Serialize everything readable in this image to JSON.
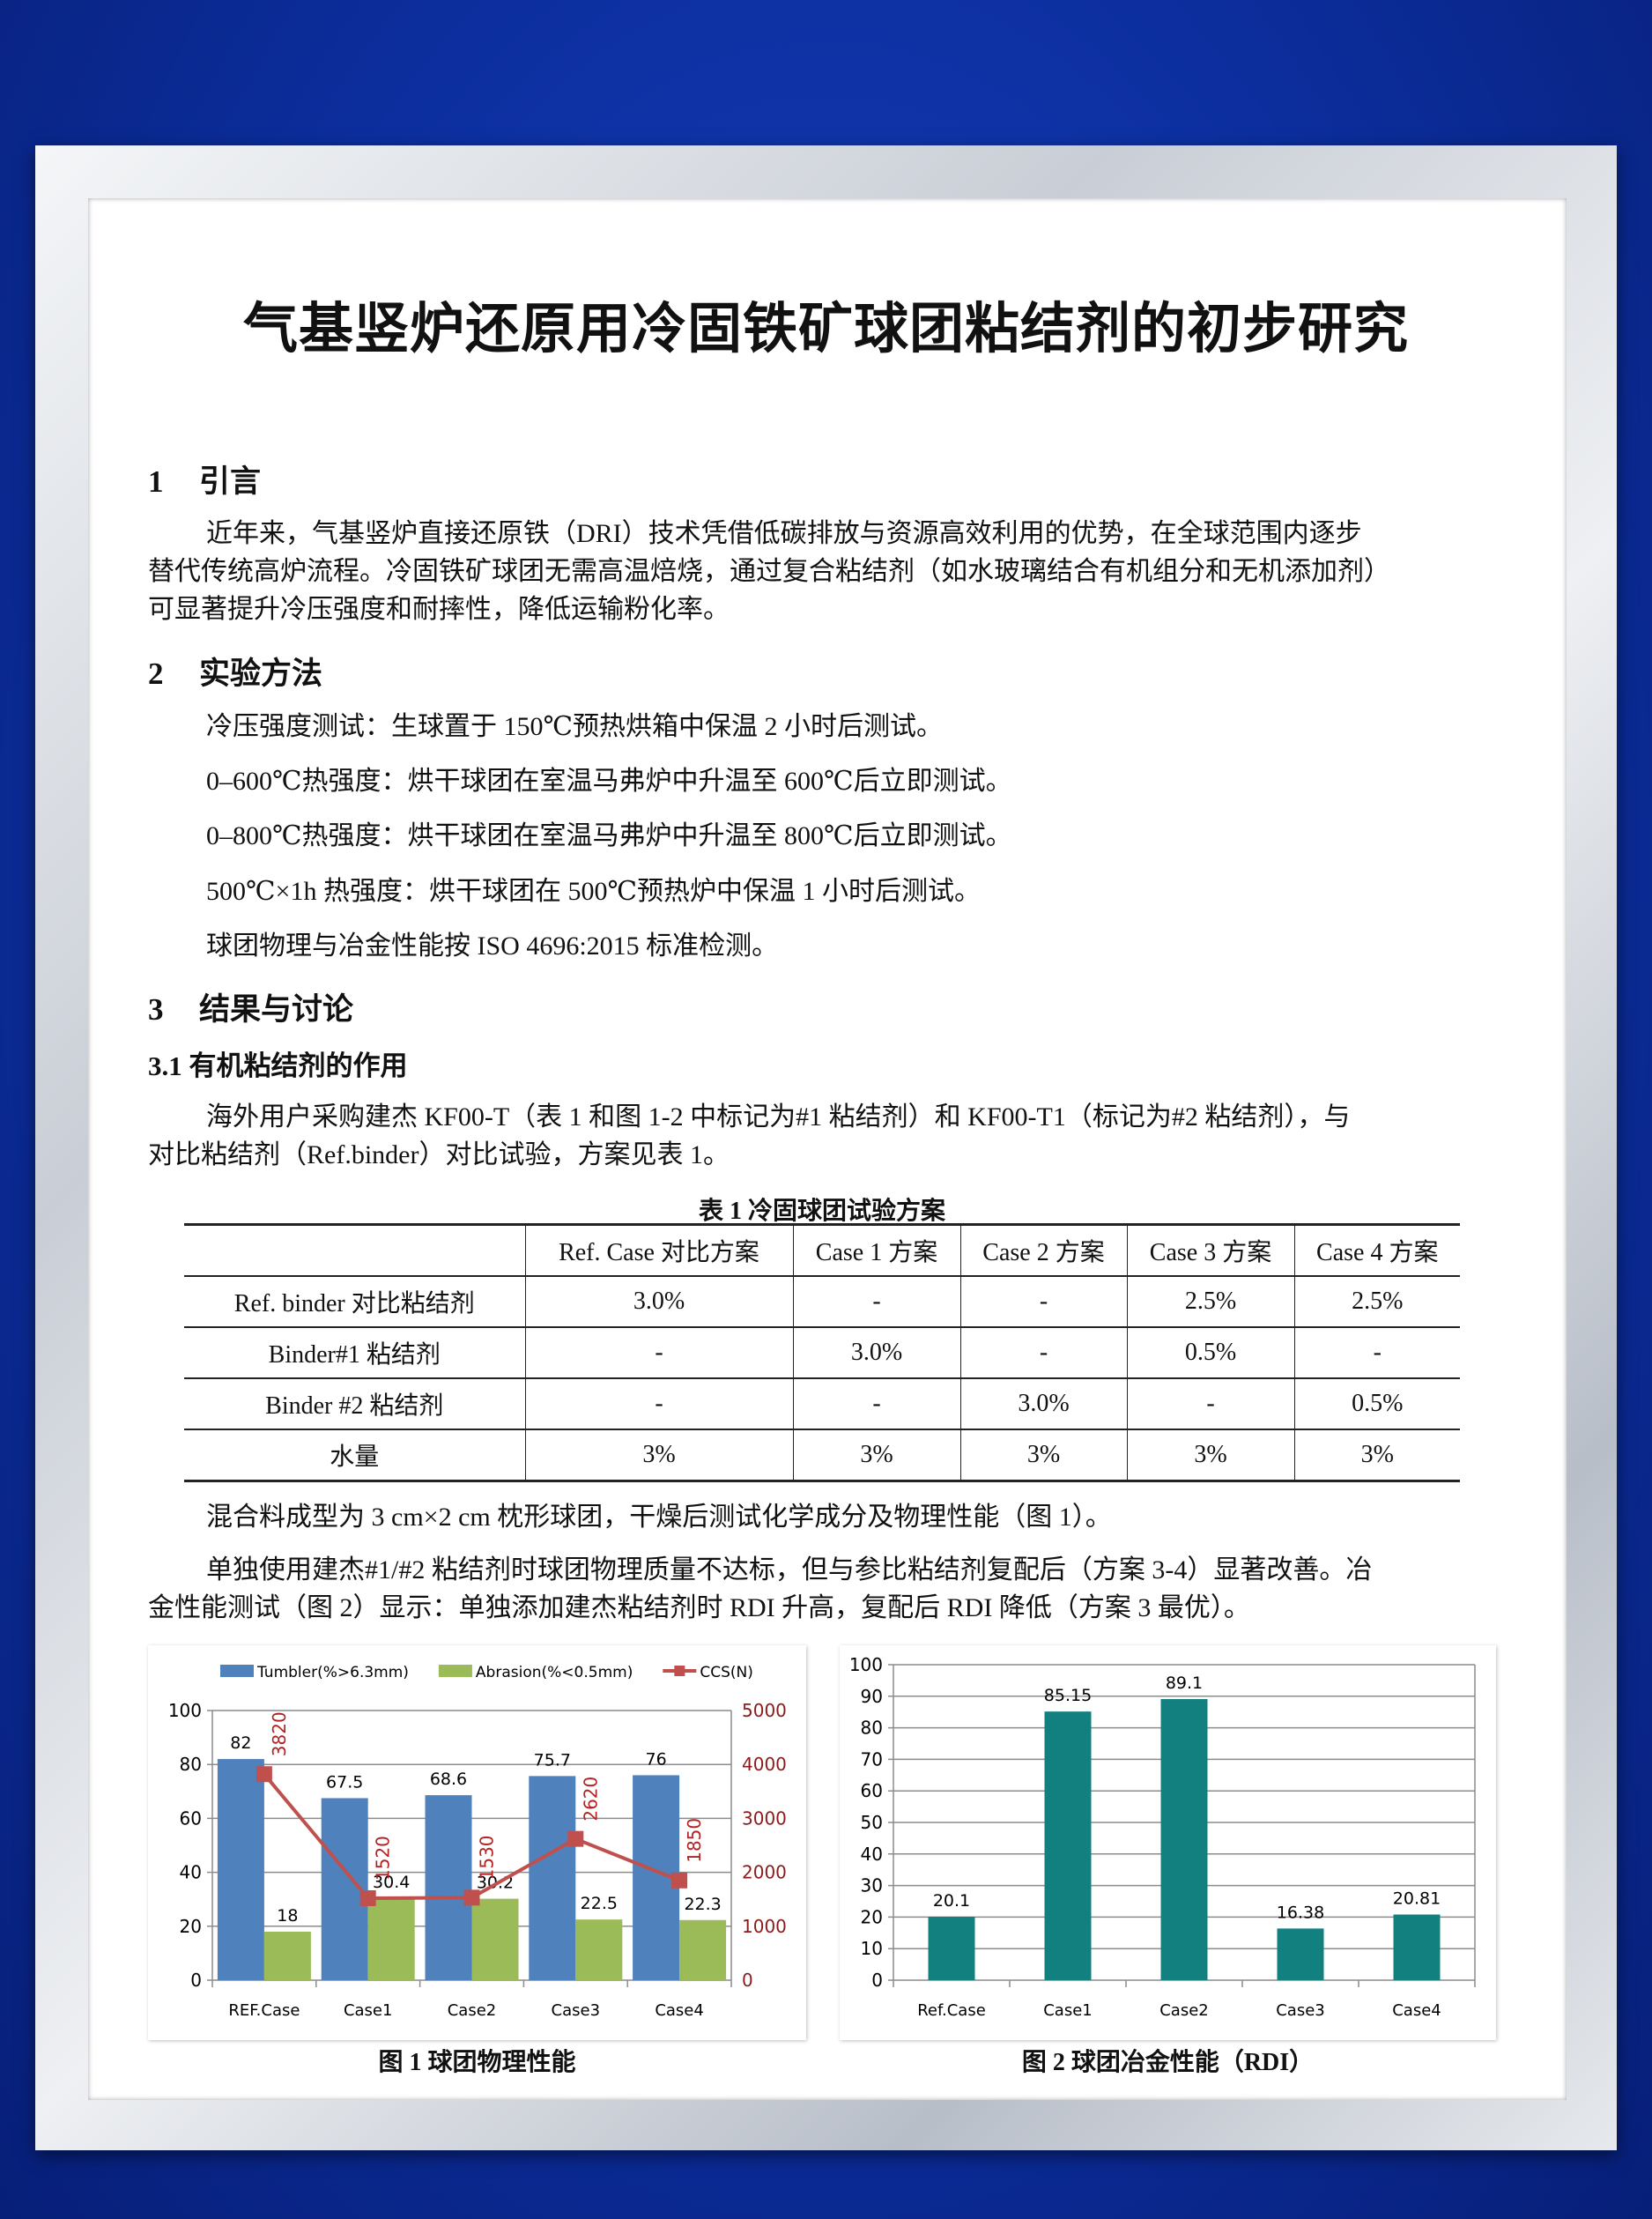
{
  "title": "气基竖炉还原用冷固铁矿球团粘结剂的初步研究",
  "sections": {
    "s1": {
      "num": "1",
      "title": "引言",
      "lines": [
        "近年来，气基竖炉直接还原铁（DRI）技术凭借低碳排放与资源高效利用的优势，在全球范围内逐步",
        "替代传统高炉流程。冷固铁矿球团无需高温焙烧，通过复合粘结剂（如水玻璃结合有机组分和无机添加剂）",
        "可显著提升冷压强度和耐摔性，降低运输粉化率。"
      ]
    },
    "s2": {
      "num": "2",
      "title": "实验方法",
      "lines": [
        "冷压强度测试：生球置于 150℃预热烘箱中保温 2 小时后测试。",
        "0–600℃热强度：烘干球团在室温马弗炉中升温至 600℃后立即测试。",
        "0–800℃热强度：烘干球团在室温马弗炉中升温至 800℃后立即测试。",
        "500℃×1h 热强度：烘干球团在 500℃预热炉中保温 1 小时后测试。",
        "球团物理与冶金性能按  ISO 4696:2015 标准检测。"
      ]
    },
    "s3": {
      "num": "3",
      "title": "结果与讨论",
      "sub": "3.1   有机粘结剂的作用",
      "p1": [
        "海外用户采购建杰 KF00-T（表 1 和图 1-2 中标记为#1 粘结剂）和 KF00-T1（标记为#2 粘结剂），与",
        "对比粘结剂（Ref.binder）对比试验，方案见表 1。"
      ],
      "p2": "混合料成型为 3 cm×2 cm 枕形球团，干燥后测试化学成分及物理性能（图 1）。",
      "p3": [
        "单独使用建杰#1/#2 粘结剂时球团物理质量不达标，但与参比粘结剂复配后（方案 3-4）显著改善。冶",
        "金性能测试（图 2）显示：单独添加建杰粘结剂时 RDI 升高，复配后 RDI 降低（方案 3 最优）。"
      ]
    }
  },
  "table": {
    "caption": "表 1   冷固球团试验方案",
    "headers": [
      "",
      "Ref. Case 对比方案",
      "Case 1 方案",
      "Case 2 方案",
      "Case 3 方案",
      "Case 4 方案"
    ],
    "rows": [
      [
        "Ref. binder 对比粘结剂",
        "3.0%",
        "-",
        "-",
        "2.5%",
        "2.5%"
      ],
      [
        "Binder#1 粘结剂",
        "-",
        "3.0%",
        "-",
        "0.5%",
        "-"
      ],
      [
        "Binder #2 粘结剂",
        "-",
        "-",
        "3.0%",
        "-",
        "0.5%"
      ],
      [
        "水量",
        "3%",
        "3%",
        "3%",
        "3%",
        "3%"
      ]
    ]
  },
  "chart_data": [
    {
      "type": "bar+line",
      "caption": "图 1  球团物理性能",
      "categories": [
        "REF.Case",
        "Case1",
        "Case2",
        "Case3",
        "Case4"
      ],
      "ylim": [
        0,
        100
      ],
      "yticks": [
        0,
        20,
        40,
        60,
        80,
        100
      ],
      "y2lim": [
        0,
        5000
      ],
      "y2ticks": [
        0,
        1000,
        2000,
        3000,
        4000,
        5000
      ],
      "grid": true,
      "legend": "top",
      "series": [
        {
          "name": "Tumbler(%>6.3mm)",
          "kind": "bar",
          "axis": "left",
          "color": "#4f81bd",
          "values": [
            82,
            67.5,
            68.6,
            75.7,
            76
          ],
          "labels": [
            "82",
            "67.5",
            "68.6",
            "75.7",
            "76"
          ]
        },
        {
          "name": "Abrasion(%<0.5mm)",
          "kind": "bar",
          "axis": "left",
          "color": "#9bbb59",
          "values": [
            18,
            30.4,
            30.2,
            22.5,
            22.3
          ],
          "labels": [
            "18",
            "30.4",
            "30.2",
            "22.5",
            "22.3"
          ]
        },
        {
          "name": "CCS(N)",
          "kind": "line",
          "axis": "right",
          "color": "#c0504d",
          "values": [
            3820,
            1520,
            1530,
            2620,
            1850
          ],
          "labels": [
            "3820",
            "1520",
            "1530",
            "2620",
            "1850"
          ]
        }
      ]
    },
    {
      "type": "bar",
      "caption": "图 2  球团冶金性能（RDI）",
      "categories": [
        "Ref.Case",
        "Case1",
        "Case2",
        "Case3",
        "Case4"
      ],
      "ylim": [
        0,
        100
      ],
      "yticks": [
        0,
        10,
        20,
        30,
        40,
        50,
        60,
        70,
        80,
        90,
        100
      ],
      "grid": true,
      "series": [
        {
          "kind": "bar",
          "color": "#138080",
          "values": [
            20.1,
            85.15,
            89.1,
            16.38,
            20.81
          ],
          "labels": [
            "20.1",
            "85.15",
            "89.1",
            "16.38",
            "20.81"
          ]
        }
      ]
    }
  ]
}
